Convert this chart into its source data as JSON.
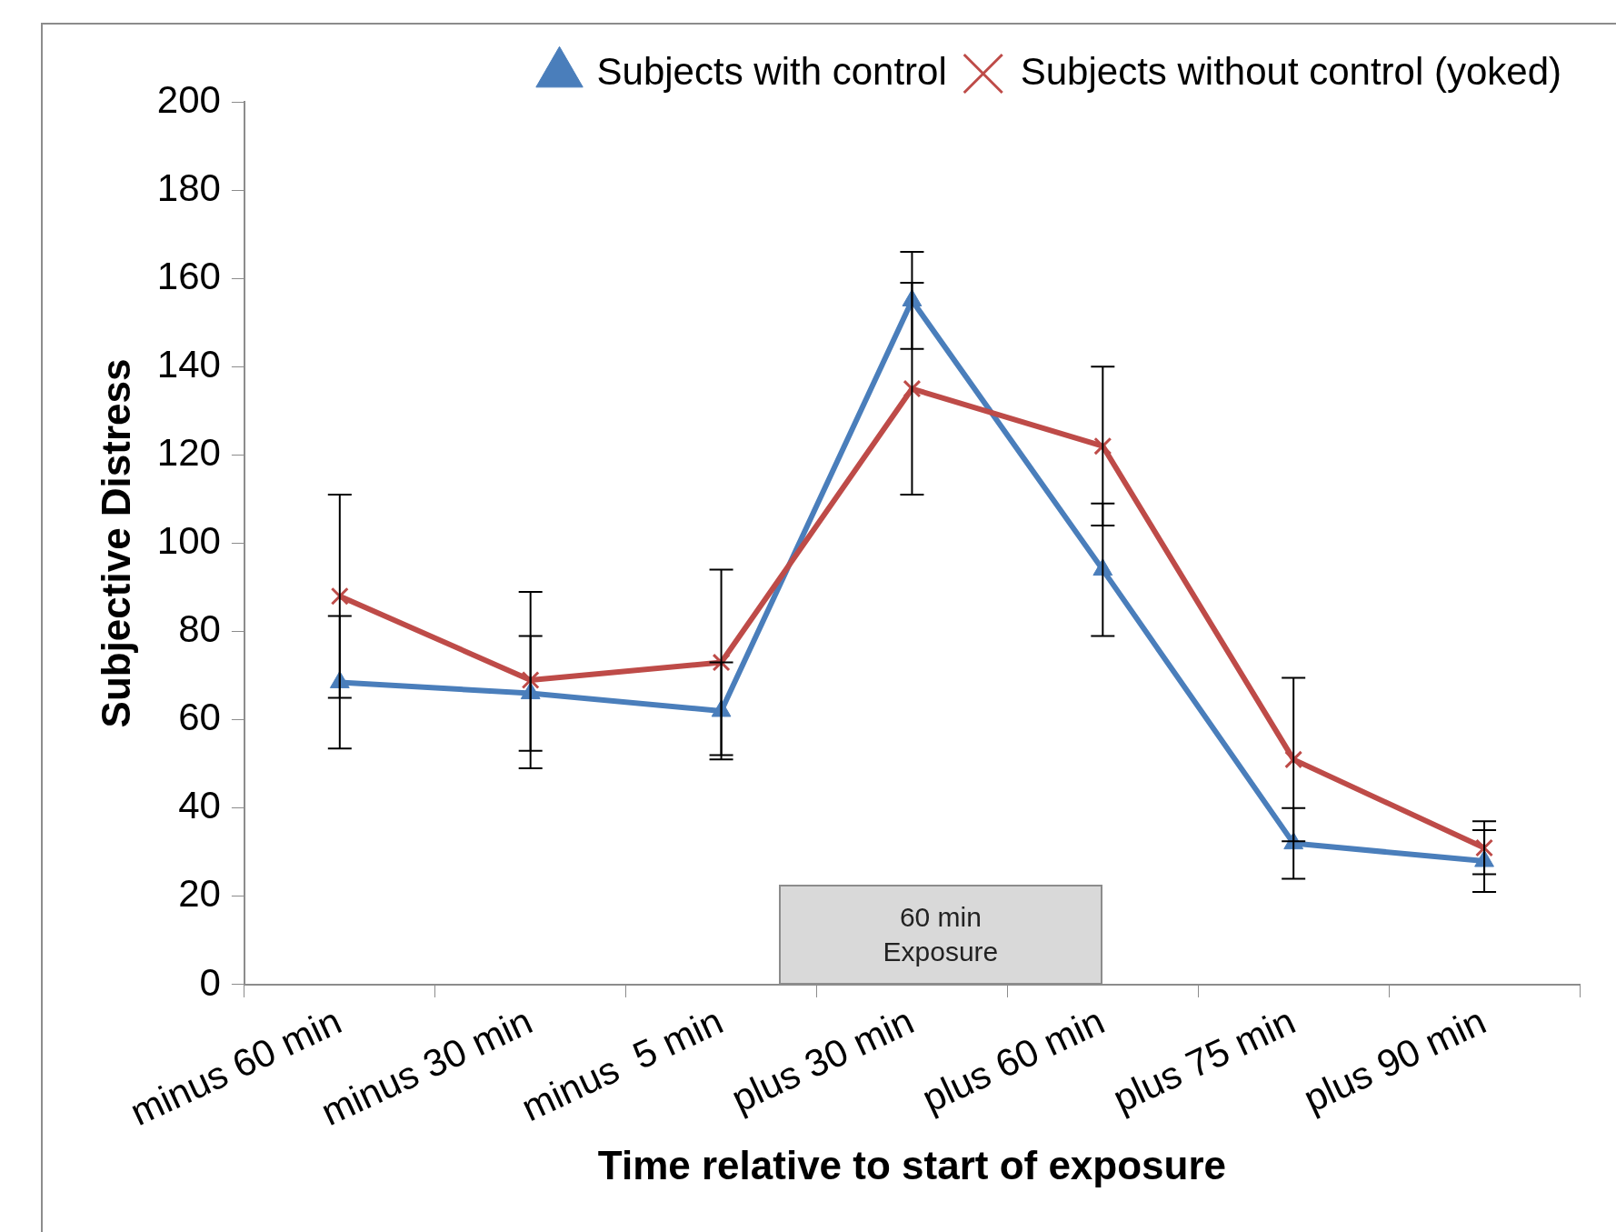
{
  "chart_data": {
    "type": "line",
    "xlabel": "Time relative to start of exposure",
    "ylabel": "Subjective Distress",
    "categories": [
      "minus 60 min",
      "minus 30 min",
      "minus  5 min",
      "plus 30 min",
      "plus 60 min",
      "plus 75 min",
      "plus 90 min"
    ],
    "series": [
      {
        "name": "Subjects with control",
        "color": "#4a7ebb",
        "marker": "triangle",
        "values": [
          68.5,
          66,
          62,
          155,
          94,
          32,
          28
        ],
        "errors": [
          15,
          13,
          11,
          11,
          15,
          8,
          7
        ]
      },
      {
        "name": "Subjects without control (yoked)",
        "color": "#be4b48",
        "marker": "cross",
        "values": [
          88,
          69,
          73,
          135,
          122,
          51,
          31
        ],
        "errors": [
          23,
          20,
          21,
          24,
          18,
          18.5,
          6
        ]
      }
    ],
    "ylim": [
      0,
      200
    ],
    "yticks": [
      0,
      20,
      40,
      60,
      80,
      100,
      120,
      140,
      160,
      180,
      200
    ],
    "grid": false,
    "legend": "top right",
    "annotations": [
      {
        "text": "60 min Exposure"
      }
    ]
  }
}
